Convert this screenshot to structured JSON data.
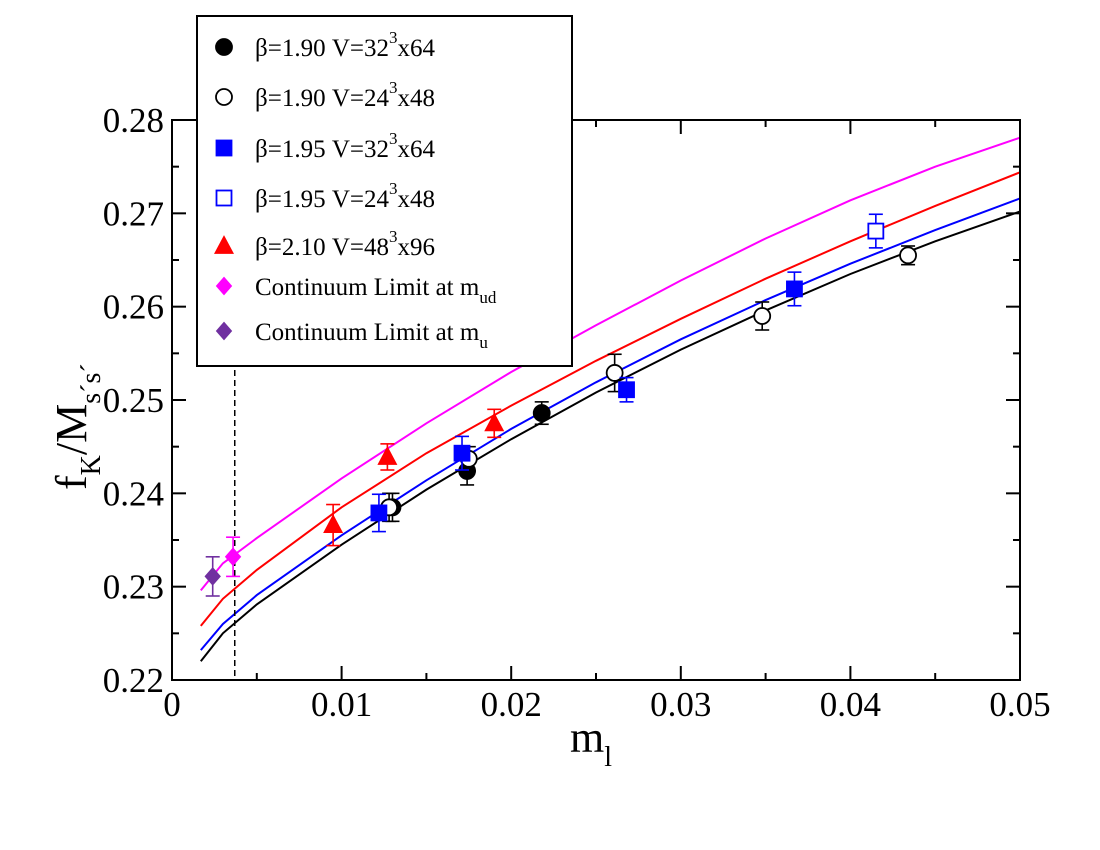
{
  "chart_data": {
    "type": "scatter",
    "xlabel": {
      "main": "m",
      "sub": "l"
    },
    "ylabel": {
      "main": "f",
      "sub1": "K",
      "mid": "/M",
      "sub2": "s´s´"
    },
    "xlim": [
      0,
      0.05
    ],
    "ylim": [
      0.22,
      0.28
    ],
    "x_ticks": [
      0,
      0.01,
      0.02,
      0.03,
      0.04,
      0.05
    ],
    "x_tick_labels": [
      "0",
      "0.01",
      "0.02",
      "0.03",
      "0.04",
      "0.05"
    ],
    "y_ticks": [
      0.22,
      0.23,
      0.24,
      0.25,
      0.26,
      0.27,
      0.28
    ],
    "y_tick_labels": [
      "0.22",
      "0.23",
      "0.24",
      "0.25",
      "0.26",
      "0.27",
      "0.28"
    ],
    "legend_position": "top-left",
    "vline_x": 0.0037,
    "series": [
      {
        "name": "b190_32",
        "legend": {
          "pre": "β=1.90 V=32",
          "sup": "3",
          "post": "x64"
        },
        "marker": "circle",
        "filled": true,
        "color": "#000000",
        "points": [
          {
            "x": 0.013,
            "y": 0.2385,
            "err": 0.0015
          },
          {
            "x": 0.0174,
            "y": 0.2424,
            "err": 0.0015
          },
          {
            "x": 0.0218,
            "y": 0.2486,
            "err": 0.0012
          }
        ]
      },
      {
        "name": "b190_24",
        "legend": {
          "pre": "β=1.90 V=24",
          "sup": "3",
          "post": "x48"
        },
        "marker": "circle",
        "filled": false,
        "color": "#000000",
        "points": [
          {
            "x": 0.0128,
            "y": 0.2385,
            "err": 0.0015
          },
          {
            "x": 0.0175,
            "y": 0.2437,
            "err": 0.0013
          },
          {
            "x": 0.0261,
            "y": 0.2529,
            "err": 0.002
          },
          {
            "x": 0.0348,
            "y": 0.259,
            "err": 0.0015
          },
          {
            "x": 0.0434,
            "y": 0.2655,
            "err": 0.001
          }
        ]
      },
      {
        "name": "b195_32",
        "legend": {
          "pre": "β=1.95 V=32",
          "sup": "3",
          "post": "x64"
        },
        "marker": "square",
        "filled": true,
        "color": "#0000ff",
        "points": [
          {
            "x": 0.0122,
            "y": 0.2379,
            "err": 0.002
          },
          {
            "x": 0.0171,
            "y": 0.2443,
            "err": 0.0018
          },
          {
            "x": 0.0268,
            "y": 0.2511,
            "err": 0.0013
          },
          {
            "x": 0.0367,
            "y": 0.2619,
            "err": 0.0018
          }
        ]
      },
      {
        "name": "b195_24",
        "legend": {
          "pre": "β=1.95 V=24",
          "sup": "3",
          "post": "x48"
        },
        "marker": "square",
        "filled": false,
        "color": "#0000ff",
        "points": [
          {
            "x": 0.0415,
            "y": 0.2681,
            "err": 0.0018
          }
        ]
      },
      {
        "name": "b210_48",
        "legend": {
          "pre": "β=2.10 V=48",
          "sup": "3",
          "post": "x96"
        },
        "marker": "triangle",
        "filled": true,
        "color": "#ff0000",
        "points": [
          {
            "x": 0.0095,
            "y": 0.2366,
            "err": 0.0022
          },
          {
            "x": 0.0127,
            "y": 0.2439,
            "err": 0.0014
          },
          {
            "x": 0.019,
            "y": 0.2475,
            "err": 0.0015
          }
        ]
      },
      {
        "name": "cont_ud",
        "legend": {
          "pre": "Continuum Limit at m",
          "sub": "ud"
        },
        "marker": "diamond",
        "filled": true,
        "color": "#ff00ff",
        "points": [
          {
            "x": 0.0036,
            "y": 0.2332,
            "err": 0.0021
          }
        ]
      },
      {
        "name": "cont_u",
        "legend": {
          "pre": "Continuum Limit at m",
          "sub": "u"
        },
        "marker": "diamond",
        "filled": true,
        "color": "#7030a0",
        "points": [
          {
            "x": 0.0024,
            "y": 0.2311,
            "err": 0.0021
          }
        ]
      }
    ],
    "fit_curves": [
      {
        "name": "fit-magenta",
        "color": "#ff00ff",
        "x": [
          0.0017,
          0.003,
          0.005,
          0.01,
          0.015,
          0.02,
          0.025,
          0.03,
          0.035,
          0.04,
          0.045,
          0.05
        ],
        "y": [
          0.2296,
          0.2325,
          0.2352,
          0.2416,
          0.2475,
          0.253,
          0.258,
          0.2628,
          0.2673,
          0.2714,
          0.275,
          0.2781
        ]
      },
      {
        "name": "fit-red",
        "color": "#ff0000",
        "x": [
          0.0017,
          0.003,
          0.005,
          0.01,
          0.015,
          0.02,
          0.025,
          0.03,
          0.035,
          0.04,
          0.045,
          0.05
        ],
        "y": [
          0.2258,
          0.2287,
          0.2318,
          0.2385,
          0.2443,
          0.2494,
          0.2542,
          0.2587,
          0.263,
          0.267,
          0.2708,
          0.2744
        ]
      },
      {
        "name": "fit-blue",
        "color": "#0000ff",
        "x": [
          0.0017,
          0.003,
          0.005,
          0.01,
          0.015,
          0.02,
          0.025,
          0.03,
          0.035,
          0.04,
          0.045,
          0.05
        ],
        "y": [
          0.2232,
          0.226,
          0.2291,
          0.2355,
          0.2414,
          0.2469,
          0.2519,
          0.2565,
          0.2607,
          0.2646,
          0.2682,
          0.2716
        ]
      },
      {
        "name": "fit-black",
        "color": "#000000",
        "x": [
          0.0017,
          0.003,
          0.005,
          0.01,
          0.015,
          0.02,
          0.025,
          0.03,
          0.035,
          0.04,
          0.045,
          0.05
        ],
        "y": [
          0.222,
          0.225,
          0.2281,
          0.2345,
          0.2404,
          0.2458,
          0.2508,
          0.2554,
          0.2596,
          0.2635,
          0.267,
          0.2702
        ]
      }
    ]
  }
}
